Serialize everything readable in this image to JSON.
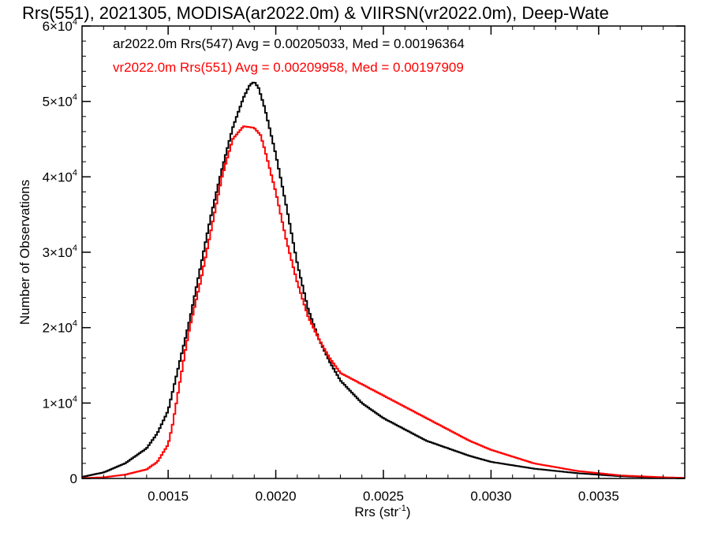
{
  "chart_data": {
    "type": "line",
    "title": "Rrs(551), 2021305, MODISA(ar2022.0m) & VIIRSN(vr2022.0m), Deep-Wate",
    "xlabel": "Rrs (str",
    "xlabel_sup": "-1",
    "xlabel_close": ")",
    "ylabel": "Number of Observations",
    "xlim": [
      0.0011,
      0.0039
    ],
    "ylim": [
      0,
      60000
    ],
    "x_ticks": [
      {
        "value": 0.0015,
        "label": "0.0015"
      },
      {
        "value": 0.002,
        "label": "0.0020"
      },
      {
        "value": 0.0025,
        "label": "0.0025"
      },
      {
        "value": 0.003,
        "label": "0.0030"
      },
      {
        "value": 0.0035,
        "label": "0.0035"
      }
    ],
    "y_ticks": [
      {
        "value": 0,
        "base": "0",
        "exp": ""
      },
      {
        "value": 10000,
        "base": "1×10",
        "exp": "4"
      },
      {
        "value": 20000,
        "base": "2×10",
        "exp": "4"
      },
      {
        "value": 30000,
        "base": "3×10",
        "exp": "4"
      },
      {
        "value": 40000,
        "base": "4×10",
        "exp": "4"
      },
      {
        "value": 50000,
        "base": "5×10",
        "exp": "4"
      },
      {
        "value": 60000,
        "base": "6×10",
        "exp": "4"
      }
    ],
    "grid": false,
    "legend_position": "top-left",
    "series": [
      {
        "name": "ar2022.0m Rrs(547) Avg = 0.00205033, Med = 0.00196364",
        "color": "#000000",
        "x": [
          0.0011,
          0.0012,
          0.0013,
          0.0014,
          0.00145,
          0.0015,
          0.00155,
          0.0016,
          0.00165,
          0.0017,
          0.00175,
          0.0018,
          0.00185,
          0.00188,
          0.0019,
          0.00192,
          0.00195,
          0.002,
          0.00205,
          0.0021,
          0.00215,
          0.0022,
          0.00225,
          0.0023,
          0.0024,
          0.0025,
          0.0026,
          0.0027,
          0.0028,
          0.0029,
          0.003,
          0.0032,
          0.0034,
          0.0036,
          0.0038,
          0.0039
        ],
        "y": [
          200,
          800,
          2000,
          4000,
          6000,
          9000,
          15000,
          21000,
          28000,
          35000,
          41000,
          46500,
          50500,
          52200,
          52600,
          51800,
          49000,
          43000,
          36000,
          28500,
          22500,
          18500,
          15500,
          13000,
          10000,
          8000,
          6500,
          5000,
          4000,
          3000,
          2200,
          1300,
          700,
          300,
          100,
          50
        ]
      },
      {
        "name": "vr2022.0m Rrs(551) Avg = 0.00209958, Med = 0.00197909",
        "color": "#ff0000",
        "x": [
          0.0011,
          0.0012,
          0.0013,
          0.0014,
          0.00145,
          0.0015,
          0.00152,
          0.00155,
          0.00158,
          0.0016,
          0.00165,
          0.0017,
          0.00175,
          0.0018,
          0.00185,
          0.0019,
          0.00193,
          0.00195,
          0.002,
          0.00205,
          0.0021,
          0.00215,
          0.0022,
          0.00225,
          0.0023,
          0.0024,
          0.0025,
          0.0026,
          0.0027,
          0.0028,
          0.0029,
          0.003,
          0.0032,
          0.0034,
          0.0036,
          0.0038,
          0.0039
        ],
        "y": [
          50,
          150,
          500,
          1200,
          2200,
          4500,
          7000,
          12000,
          17000,
          20000,
          26000,
          33000,
          40000,
          45000,
          46700,
          46500,
          45500,
          43500,
          38000,
          31500,
          26000,
          21500,
          18500,
          16000,
          14000,
          12500,
          11000,
          9500,
          8000,
          6500,
          5000,
          3800,
          2000,
          1000,
          400,
          150,
          80
        ]
      }
    ]
  }
}
